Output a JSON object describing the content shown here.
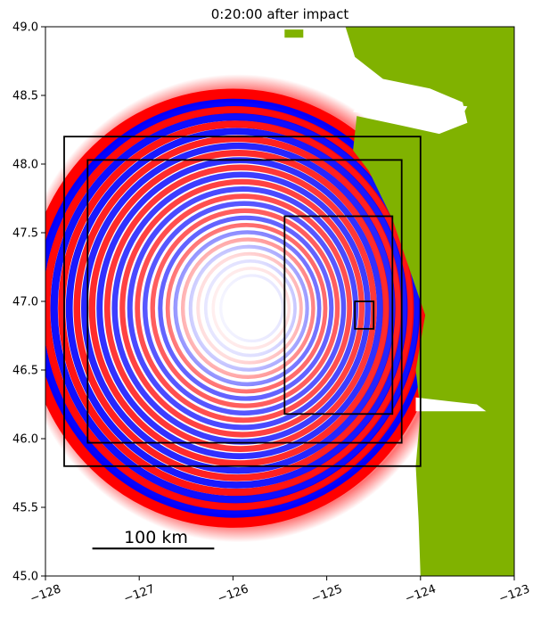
{
  "chart_data": {
    "type": "map",
    "title": "0:20:00 after impact",
    "xlim": [
      -128,
      -123
    ],
    "ylim": [
      45.0,
      49.0
    ],
    "x_ticks": [
      -128,
      -127,
      -126,
      -125,
      -124,
      -123
    ],
    "x_tick_labels": [
      "−128",
      "−127",
      "−126",
      "−125",
      "−124",
      "−123"
    ],
    "y_ticks": [
      45.0,
      45.5,
      46.0,
      46.5,
      47.0,
      47.5,
      48.0,
      48.5,
      49.0
    ],
    "y_tick_labels": [
      "45.0",
      "45.5",
      "46.0",
      "46.5",
      "47.0",
      "47.5",
      "48.0",
      "48.5",
      "49.0"
    ],
    "wave_center": {
      "lon": -126.0,
      "lat": 46.95
    },
    "wave_front": {
      "radius_lon": 2.15,
      "radius_lat": 1.55
    },
    "boxes": [
      {
        "name": "outer-region",
        "lon": [
          -127.8,
          -124.0
        ],
        "lat": [
          45.8,
          48.2
        ]
      },
      {
        "name": "inner-region",
        "lon": [
          -127.55,
          -124.2
        ],
        "lat": [
          45.97,
          48.03
        ]
      },
      {
        "name": "coastal-region",
        "lon": [
          -125.45,
          -124.3
        ],
        "lat": [
          46.18,
          47.62
        ]
      },
      {
        "name": "fine-region",
        "lon": [
          -124.7,
          -124.5
        ],
        "lat": [
          46.8,
          47.0
        ]
      }
    ],
    "scale_bar": {
      "label": "100 km",
      "lon": [
        -127.5,
        -126.2
      ],
      "lat": 45.2
    },
    "colors": {
      "land": "#80b200",
      "positive": "#ff0000",
      "negative": "#0000ff",
      "water": "#ffffff"
    }
  }
}
